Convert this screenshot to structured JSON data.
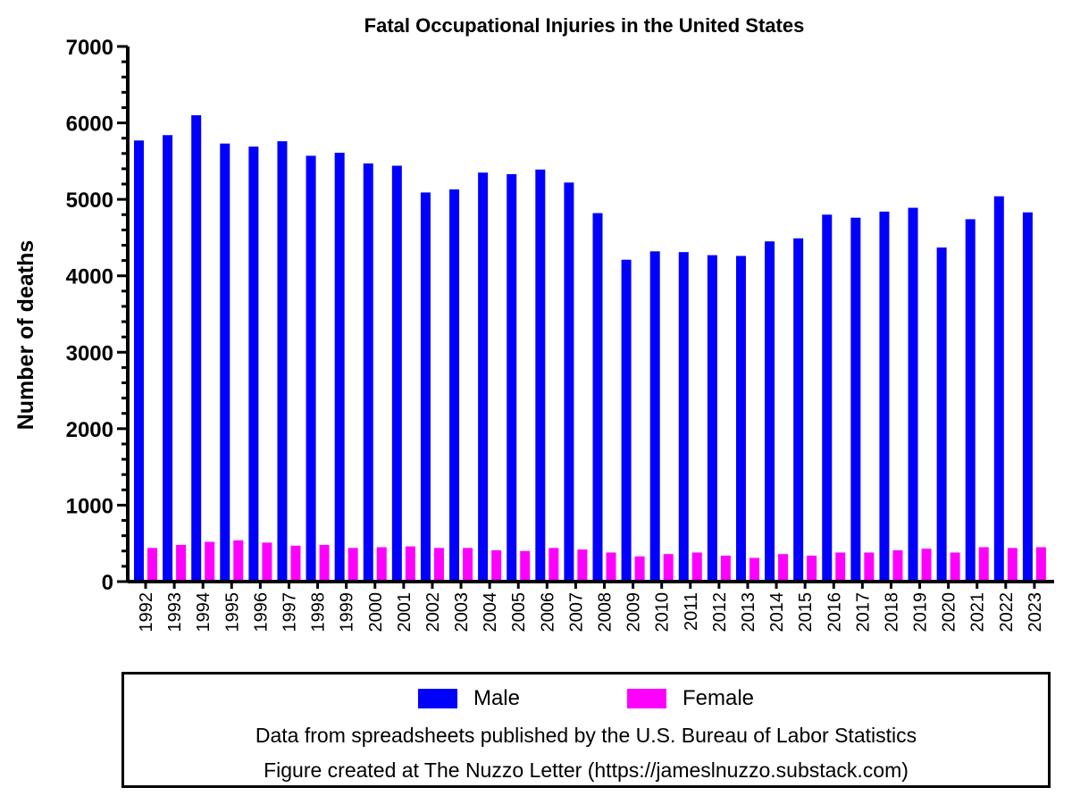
{
  "chart_data": {
    "type": "bar",
    "title": "Fatal Occupational Injuries in the United States",
    "xlabel": "",
    "ylabel": "Number of deaths",
    "ylim": [
      0,
      7000
    ],
    "yticks": [
      0,
      1000,
      2000,
      3000,
      4000,
      5000,
      6000,
      7000
    ],
    "categories": [
      "1992",
      "1993",
      "1994",
      "1995",
      "1996",
      "1997",
      "1998",
      "1999",
      "2000",
      "2001",
      "2002",
      "2003",
      "2004",
      "2005",
      "2006",
      "2007",
      "2008",
      "2009",
      "2010",
      "2011",
      "2012",
      "2013",
      "2014",
      "2015",
      "2016",
      "2017",
      "2018",
      "2019",
      "2020",
      "2021",
      "2022",
      "2023"
    ],
    "series": [
      {
        "name": "Male",
        "color": "#0000ff",
        "values": [
          5770,
          5840,
          6100,
          5730,
          5690,
          5760,
          5570,
          5610,
          5470,
          5440,
          5090,
          5130,
          5350,
          5330,
          5390,
          5220,
          4820,
          4210,
          4320,
          4310,
          4270,
          4260,
          4450,
          4490,
          4800,
          4760,
          4840,
          4890,
          4370,
          4740,
          5040,
          4830
        ]
      },
      {
        "name": "Female",
        "color": "#ff00ff",
        "values": [
          440,
          480,
          520,
          540,
          510,
          470,
          480,
          440,
          450,
          460,
          440,
          440,
          410,
          400,
          440,
          420,
          380,
          330,
          360,
          380,
          340,
          310,
          360,
          340,
          380,
          380,
          410,
          430,
          380,
          450,
          440,
          450
        ]
      }
    ],
    "legend_position": "bottom"
  },
  "footer": {
    "source_note": "Data from spreadsheets published by the U.S. Bureau of Labor Statistics",
    "credit_note": "Figure created at The Nuzzo Letter (https://jameslnuzzo.substack.com)"
  }
}
